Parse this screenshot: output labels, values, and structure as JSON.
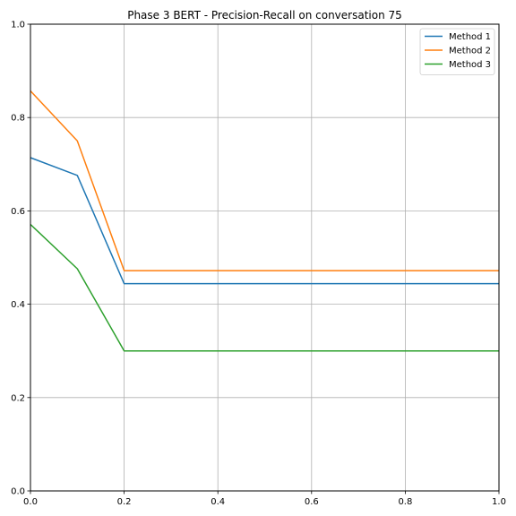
{
  "chart_data": {
    "type": "line",
    "title": "Phase 3 BERT - Precision-Recall on conversation 75",
    "xlabel": "",
    "ylabel": "",
    "xlim": [
      0,
      1
    ],
    "ylim": [
      0,
      1
    ],
    "xticks": [
      "0.0",
      "0.2",
      "0.4",
      "0.6",
      "0.8",
      "1.0"
    ],
    "yticks": [
      "0.0",
      "0.2",
      "0.4",
      "0.6",
      "0.8",
      "1.0"
    ],
    "grid": true,
    "legend_position": "top-right",
    "series": [
      {
        "name": "Method 1",
        "color": "#1f77b4",
        "x": [
          0.0,
          0.1,
          0.2,
          0.3,
          0.4,
          0.5,
          0.6,
          0.7,
          0.8,
          0.9,
          1.0
        ],
        "y": [
          0.714,
          0.676,
          0.444,
          0.444,
          0.444,
          0.444,
          0.444,
          0.444,
          0.444,
          0.444,
          0.444
        ]
      },
      {
        "name": "Method 2",
        "color": "#ff7f0e",
        "x": [
          0.0,
          0.1,
          0.2,
          0.3,
          0.4,
          0.5,
          0.6,
          0.7,
          0.8,
          0.9,
          1.0
        ],
        "y": [
          0.857,
          0.75,
          0.472,
          0.472,
          0.472,
          0.472,
          0.472,
          0.472,
          0.472,
          0.472,
          0.472
        ]
      },
      {
        "name": "Method 3",
        "color": "#2ca02c",
        "x": [
          0.0,
          0.1,
          0.2,
          0.3,
          0.4,
          0.5,
          0.6,
          0.7,
          0.8,
          0.9,
          1.0
        ],
        "y": [
          0.571,
          0.476,
          0.3,
          0.3,
          0.3,
          0.3,
          0.3,
          0.3,
          0.3,
          0.3,
          0.3
        ]
      }
    ]
  }
}
